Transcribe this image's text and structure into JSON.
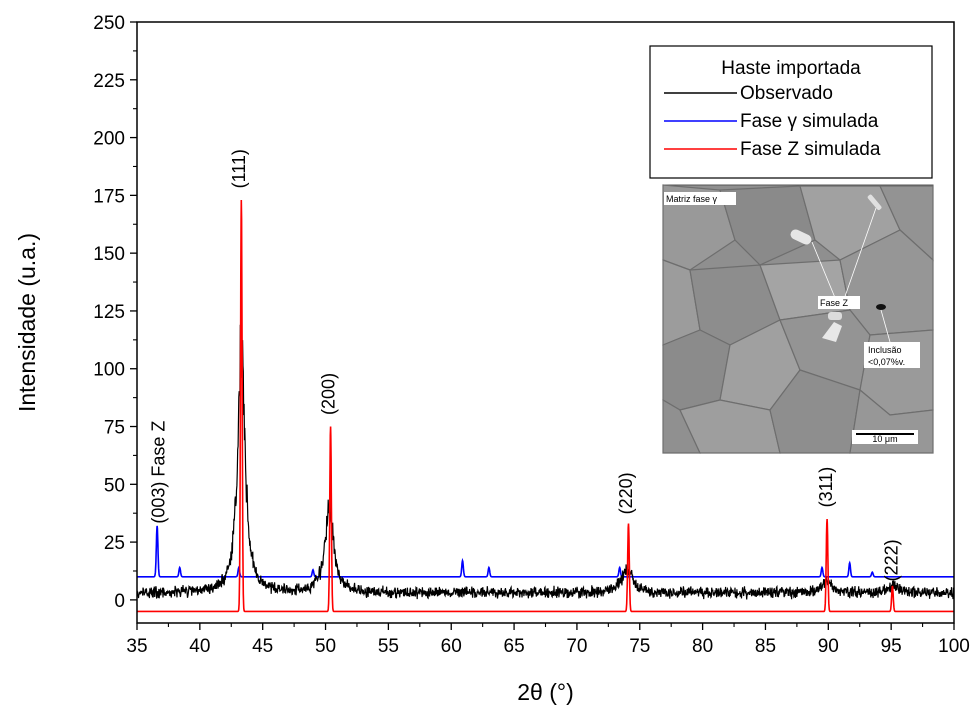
{
  "chart_data": {
    "type": "line",
    "xlabel": "2θ (°)",
    "ylabel": "Intensidade (u.a.)",
    "xlim": [
      35,
      100
    ],
    "ylim": [
      -10,
      250
    ],
    "xticks": [
      35,
      40,
      45,
      50,
      55,
      60,
      65,
      70,
      75,
      80,
      85,
      90,
      95,
      100
    ],
    "yticks": [
      0,
      25,
      50,
      75,
      100,
      125,
      150,
      175,
      200,
      225,
      250
    ],
    "legend": {
      "title": "Haste importada",
      "position": "top-right",
      "entries": [
        "Observado",
        "Fase γ simulada",
        "Fase Z simulada"
      ]
    },
    "series": [
      {
        "name": "Observado",
        "color": "#000000",
        "baseline": 3,
        "noise": 3,
        "peaks": [
          {
            "x": 43.3,
            "height": 108,
            "width": 0.35
          },
          {
            "x": 50.3,
            "height": 38,
            "width": 0.4
          },
          {
            "x": 74.0,
            "height": 10,
            "width": 0.55
          },
          {
            "x": 89.9,
            "height": 5,
            "width": 0.5
          },
          {
            "x": 95.2,
            "height": 3,
            "width": 0.5
          }
        ]
      },
      {
        "name": "Fase γ simulada",
        "color": "#0000ff",
        "baseline": 10,
        "peaks": [
          {
            "x": 36.6,
            "height": 32
          },
          {
            "x": 38.4,
            "height": 14
          },
          {
            "x": 43.1,
            "height": 14
          },
          {
            "x": 49.0,
            "height": 13
          },
          {
            "x": 60.9,
            "height": 17
          },
          {
            "x": 63.0,
            "height": 14
          },
          {
            "x": 73.4,
            "height": 14
          },
          {
            "x": 89.5,
            "height": 14
          },
          {
            "x": 91.7,
            "height": 16
          },
          {
            "x": 93.5,
            "height": 12
          }
        ]
      },
      {
        "name": "Fase Z simulada",
        "color": "#ff0000",
        "baseline": -5,
        "peaks": [
          {
            "x": 43.3,
            "height": 173
          },
          {
            "x": 50.4,
            "height": 75
          },
          {
            "x": 74.1,
            "height": 33
          },
          {
            "x": 89.9,
            "height": 35
          },
          {
            "x": 95.1,
            "height": 6
          }
        ]
      }
    ],
    "annotations": [
      {
        "text": "(003) Fase Z",
        "x": 37.2,
        "y": 33,
        "rotation": -90
      },
      {
        "text": "(111)",
        "x": 43.6,
        "y": 178,
        "rotation": -90
      },
      {
        "text": "(200)",
        "x": 50.7,
        "y": 80,
        "rotation": -90
      },
      {
        "text": "(220)",
        "x": 74.4,
        "y": 37,
        "rotation": -90
      },
      {
        "text": "(311)",
        "x": 90.3,
        "y": 40,
        "rotation": -90
      },
      {
        "text": "(222)",
        "x": 95.5,
        "y": 8,
        "rotation": -90
      }
    ],
    "inset": {
      "labels": [
        "Matriz fase γ",
        "Fase Z",
        "Inclusão",
        "<0,07%v.",
        "10 μm"
      ]
    }
  }
}
